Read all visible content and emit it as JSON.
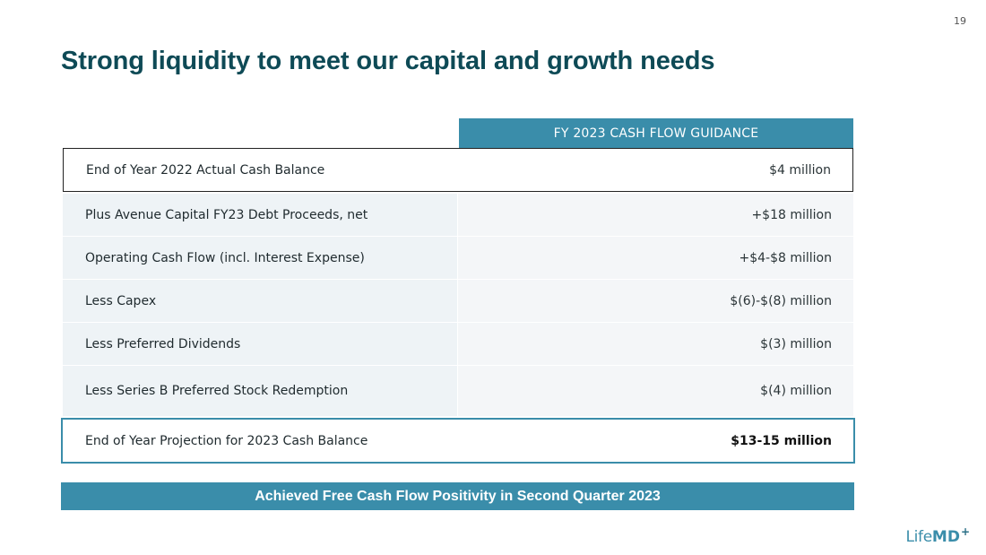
{
  "page_number": "19",
  "title": "Strong liquidity to meet our capital and growth needs",
  "table": {
    "column_header": "FY 2023 CASH FLOW GUIDANCE",
    "rows": [
      {
        "label": "End of Year 2022 Actual Cash Balance",
        "value": "$4 million"
      },
      {
        "label": "Plus Avenue Capital FY23 Debt Proceeds, net",
        "value": "+$18 million"
      },
      {
        "label": "Operating Cash Flow (incl. Interest Expense)",
        "value": "+$4-$8 million"
      },
      {
        "label": "Less Capex",
        "value": "$(6)-$(8) million"
      },
      {
        "label": "Less Preferred Dividends",
        "value": "$(3) million"
      },
      {
        "label": "Less Series B Preferred Stock Redemption",
        "value": "$(4) million"
      }
    ],
    "total": {
      "label": "End of Year Projection for 2023 Cash Balance",
      "value": "$13-15 million"
    }
  },
  "banner": "Achieved Free Cash Flow Positivity in Second Quarter 2023",
  "logo": {
    "life": "Life",
    "md": "MD",
    "plus": "+"
  },
  "colors": {
    "title": "#0e4a56",
    "accent": "#3a8daa",
    "row_shade": "#eef3f6"
  }
}
